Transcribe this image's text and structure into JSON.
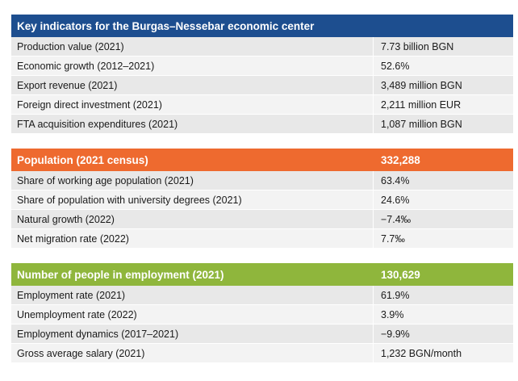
{
  "sections": [
    {
      "title": "Key indicators for the Burgas–Nessebar economic center",
      "value": "",
      "color": "#1d4e8f",
      "rows": [
        {
          "label": "Production value (2021)",
          "value": "7.73 billion BGN"
        },
        {
          "label": "Economic growth (2012–2021)",
          "value": "52.6%"
        },
        {
          "label": "Export revenue (2021)",
          "value": "3,489 million BGN"
        },
        {
          "label": "Foreign direct investment (2021)",
          "value": "2,211 million EUR"
        },
        {
          "label": "FTA acquisition expenditures (2021)",
          "value": "1,087 million BGN"
        }
      ]
    },
    {
      "title": "Population (2021 census)",
      "value": "332,288",
      "color": "#ee6a2f",
      "rows": [
        {
          "label": "Share of working age population (2021)",
          "value": "63.4%"
        },
        {
          "label": "Share of population with university degrees (2021)",
          "value": "24.6%"
        },
        {
          "label": "Natural growth (2022)",
          "value": "−7.4‰"
        },
        {
          "label": "Net migration rate (2022)",
          "value": "7.7‰"
        }
      ]
    },
    {
      "title": "Number of people in employment (2021)",
      "value": "130,629",
      "color": "#8fb63c",
      "rows": [
        {
          "label": "Employment rate (2021)",
          "value": "61.9%"
        },
        {
          "label": "Unemployment rate (2022)",
          "value": "3.9%"
        },
        {
          "label": "Employment dynamics (2017–2021)",
          "value": "−9.9%"
        },
        {
          "label": "Gross average salary (2021)",
          "value": "1,232 BGN/month"
        }
      ]
    }
  ]
}
